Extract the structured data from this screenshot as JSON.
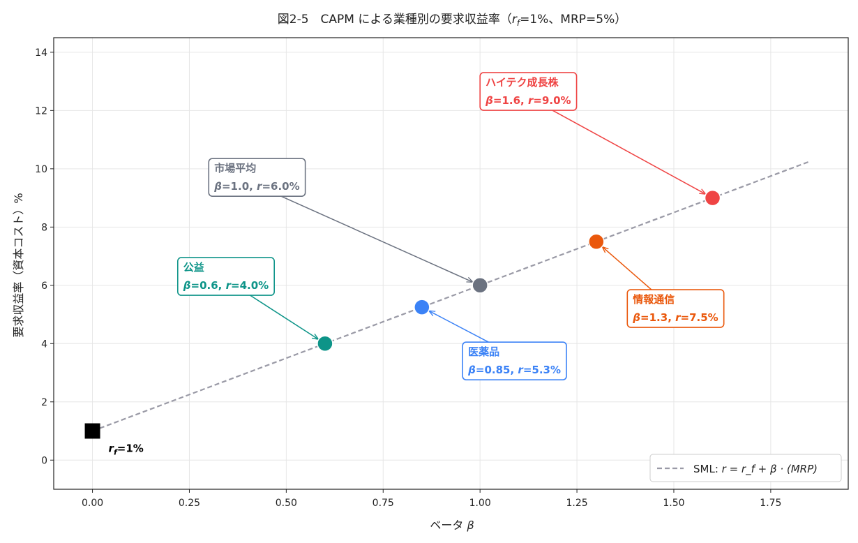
{
  "chart_data": {
    "type": "scatter",
    "title": "図2-5　CAPM による業種別の要求収益率（r_f=1%、MRP=5%）",
    "title_parts": {
      "prefix": "図2-5　CAPM による業種別の要求収益率（",
      "r_symbol": "r",
      "f_sub": "f",
      "suffix": "=1%、MRP=5%）"
    },
    "xlabel": "ベータ β",
    "xlabel_parts": {
      "text": "ベータ ",
      "symbol": "β"
    },
    "ylabel": "要求収益率（資本コスト）%",
    "xlim": [
      -0.1,
      1.95
    ],
    "ylim": [
      -1,
      14.5
    ],
    "xticks": [
      0.0,
      0.25,
      0.5,
      0.75,
      1.0,
      1.25,
      1.5,
      1.75
    ],
    "xtick_labels": [
      "0.00",
      "0.25",
      "0.50",
      "0.75",
      "1.00",
      "1.25",
      "1.50",
      "1.75"
    ],
    "yticks": [
      0,
      2,
      4,
      6,
      8,
      10,
      12,
      14
    ],
    "ytick_labels": [
      "0",
      "2",
      "4",
      "6",
      "8",
      "10",
      "12",
      "14"
    ],
    "grid": true,
    "sml": {
      "x": [
        0.0,
        1.85
      ],
      "y": [
        1.0,
        10.25
      ],
      "color": "#9a9aa6",
      "legend_parts": {
        "prefix": "SML: ",
        "formula": "r = r_f + β · (MRP)"
      }
    },
    "legend_position": "bottom-right",
    "risk_free": {
      "x": 0.0,
      "y": 1.0,
      "label_r": "r",
      "label_f": "f",
      "label_rest": "=1%",
      "color": "#000000"
    },
    "points": [
      {
        "name": "公益",
        "beta": 0.6,
        "r": 4.0,
        "beta_label": "0.6",
        "r_label": "4.0%",
        "color": "#0d9488",
        "label_at": [
          0.22,
          6.4
        ]
      },
      {
        "name": "医薬品",
        "beta": 0.85,
        "r": 5.25,
        "beta_label": "0.85",
        "r_label": "5.3%",
        "color": "#3b82f6",
        "label_at": [
          0.955,
          3.5
        ]
      },
      {
        "name": "市場平均",
        "beta": 1.0,
        "r": 6.0,
        "beta_label": "1.0",
        "r_label": "6.0%",
        "color": "#6b7280",
        "label_at": [
          0.3,
          9.8
        ]
      },
      {
        "name": "情報通信",
        "beta": 1.3,
        "r": 7.5,
        "beta_label": "1.3",
        "r_label": "7.5%",
        "color": "#ea580c",
        "label_at": [
          1.38,
          5.3
        ]
      },
      {
        "name": "ハイテク成長株",
        "beta": 1.6,
        "r": 9.0,
        "beta_label": "1.6",
        "r_label": "9.0%",
        "color": "#ef4444",
        "label_at": [
          1.0,
          12.75
        ]
      }
    ],
    "beta_symbol": "β",
    "r_symbol": "r"
  }
}
